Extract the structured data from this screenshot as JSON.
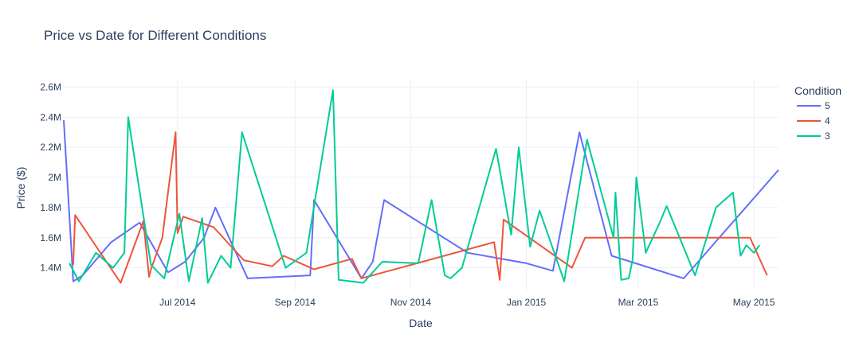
{
  "chart_data": {
    "type": "line",
    "title": "Price vs Date for Different Conditions",
    "xlabel": "Date",
    "ylabel": "Price ($)",
    "x_range": [
      "2014-05-02",
      "2015-05-14"
    ],
    "y_range": [
      1250000,
      2650000
    ],
    "x_ticks": [
      {
        "date": "2014-07-01",
        "label": "Jul 2014"
      },
      {
        "date": "2014-09-01",
        "label": "Sep 2014"
      },
      {
        "date": "2014-11-01",
        "label": "Nov 2014"
      },
      {
        "date": "2015-01-01",
        "label": "Jan 2015"
      },
      {
        "date": "2015-03-01",
        "label": "Mar 2015"
      },
      {
        "date": "2015-05-01",
        "label": "May 2015"
      }
    ],
    "y_ticks": [
      {
        "value": 1400000,
        "label": "1.4M"
      },
      {
        "value": 1600000,
        "label": "1.6M"
      },
      {
        "value": 1800000,
        "label": "1.8M"
      },
      {
        "value": 2000000,
        "label": "2M"
      },
      {
        "value": 2200000,
        "label": "2.2M"
      },
      {
        "value": 2400000,
        "label": "2.4M"
      },
      {
        "value": 2600000,
        "label": "2.6M"
      }
    ],
    "grid": true,
    "legend": {
      "title": "Condition",
      "position": "top-right"
    },
    "series": [
      {
        "name": "5",
        "color": "#636efa",
        "points": [
          [
            "2014-05-02",
            2380000
          ],
          [
            "2014-05-07",
            1310000
          ],
          [
            "2014-05-12",
            1350000
          ],
          [
            "2014-05-27",
            1570000
          ],
          [
            "2014-06-11",
            1700000
          ],
          [
            "2014-06-26",
            1370000
          ],
          [
            "2014-07-05",
            1440000
          ],
          [
            "2014-07-15",
            1600000
          ],
          [
            "2014-07-21",
            1800000
          ],
          [
            "2014-08-07",
            1330000
          ],
          [
            "2014-09-09",
            1350000
          ],
          [
            "2014-09-11",
            1850000
          ],
          [
            "2014-10-06",
            1330000
          ],
          [
            "2014-10-12",
            1440000
          ],
          [
            "2014-10-18",
            1850000
          ],
          [
            "2014-12-01",
            1500000
          ],
          [
            "2015-01-01",
            1430000
          ],
          [
            "2015-01-15",
            1380000
          ],
          [
            "2015-01-29",
            2300000
          ],
          [
            "2015-02-15",
            1480000
          ],
          [
            "2015-03-25",
            1330000
          ],
          [
            "2015-05-14",
            2050000
          ]
        ]
      },
      {
        "name": "4",
        "color": "#ef553b",
        "points": [
          [
            "2014-05-07",
            1420000
          ],
          [
            "2014-05-08",
            1750000
          ],
          [
            "2014-06-01",
            1300000
          ],
          [
            "2014-06-13",
            1710000
          ],
          [
            "2014-06-16",
            1340000
          ],
          [
            "2014-06-17",
            1390000
          ],
          [
            "2014-06-23",
            1600000
          ],
          [
            "2014-06-30",
            2300000
          ],
          [
            "2014-07-01",
            1630000
          ],
          [
            "2014-07-04",
            1740000
          ],
          [
            "2014-07-20",
            1670000
          ],
          [
            "2014-08-05",
            1450000
          ],
          [
            "2014-08-20",
            1410000
          ],
          [
            "2014-08-26",
            1480000
          ],
          [
            "2014-09-11",
            1390000
          ],
          [
            "2014-10-01",
            1460000
          ],
          [
            "2014-10-06",
            1330000
          ],
          [
            "2014-12-15",
            1570000
          ],
          [
            "2014-12-18",
            1320000
          ],
          [
            "2014-12-20",
            1720000
          ],
          [
            "2015-01-25",
            1400000
          ],
          [
            "2015-02-01",
            1600000
          ],
          [
            "2015-04-29",
            1600000
          ],
          [
            "2015-05-08",
            1350000
          ]
        ]
      },
      {
        "name": "3",
        "color": "#00cc96",
        "points": [
          [
            "2014-05-05",
            1430000
          ],
          [
            "2014-05-10",
            1310000
          ],
          [
            "2014-05-19",
            1500000
          ],
          [
            "2014-05-28",
            1400000
          ],
          [
            "2014-06-03",
            1500000
          ],
          [
            "2014-06-05",
            2400000
          ],
          [
            "2014-06-17",
            1420000
          ],
          [
            "2014-06-24",
            1330000
          ],
          [
            "2014-07-02",
            1760000
          ],
          [
            "2014-07-07",
            1310000
          ],
          [
            "2014-07-14",
            1730000
          ],
          [
            "2014-07-17",
            1300000
          ],
          [
            "2014-07-24",
            1480000
          ],
          [
            "2014-07-29",
            1400000
          ],
          [
            "2014-08-04",
            2300000
          ],
          [
            "2014-08-27",
            1400000
          ],
          [
            "2014-09-07",
            1500000
          ],
          [
            "2014-09-21",
            2580000
          ],
          [
            "2014-09-24",
            1320000
          ],
          [
            "2014-10-07",
            1300000
          ],
          [
            "2014-10-17",
            1440000
          ],
          [
            "2014-11-05",
            1430000
          ],
          [
            "2014-11-12",
            1850000
          ],
          [
            "2014-11-19",
            1350000
          ],
          [
            "2014-11-22",
            1330000
          ],
          [
            "2014-11-28",
            1400000
          ],
          [
            "2014-12-16",
            2190000
          ],
          [
            "2014-12-24",
            1620000
          ],
          [
            "2014-12-28",
            2200000
          ],
          [
            "2015-01-03",
            1540000
          ],
          [
            "2015-01-08",
            1780000
          ],
          [
            "2015-01-21",
            1310000
          ],
          [
            "2015-02-02",
            2250000
          ],
          [
            "2015-02-16",
            1600000
          ],
          [
            "2015-02-17",
            1900000
          ],
          [
            "2015-02-20",
            1320000
          ],
          [
            "2015-02-24",
            1330000
          ],
          [
            "2015-02-26",
            1450000
          ],
          [
            "2015-02-28",
            2000000
          ],
          [
            "2015-03-05",
            1500000
          ],
          [
            "2015-03-12",
            1690000
          ],
          [
            "2015-03-16",
            1810000
          ],
          [
            "2015-03-31",
            1350000
          ],
          [
            "2015-04-11",
            1800000
          ],
          [
            "2015-04-20",
            1900000
          ],
          [
            "2015-04-24",
            1480000
          ],
          [
            "2015-04-27",
            1550000
          ],
          [
            "2015-05-01",
            1500000
          ],
          [
            "2015-05-04",
            1550000
          ]
        ]
      }
    ]
  }
}
